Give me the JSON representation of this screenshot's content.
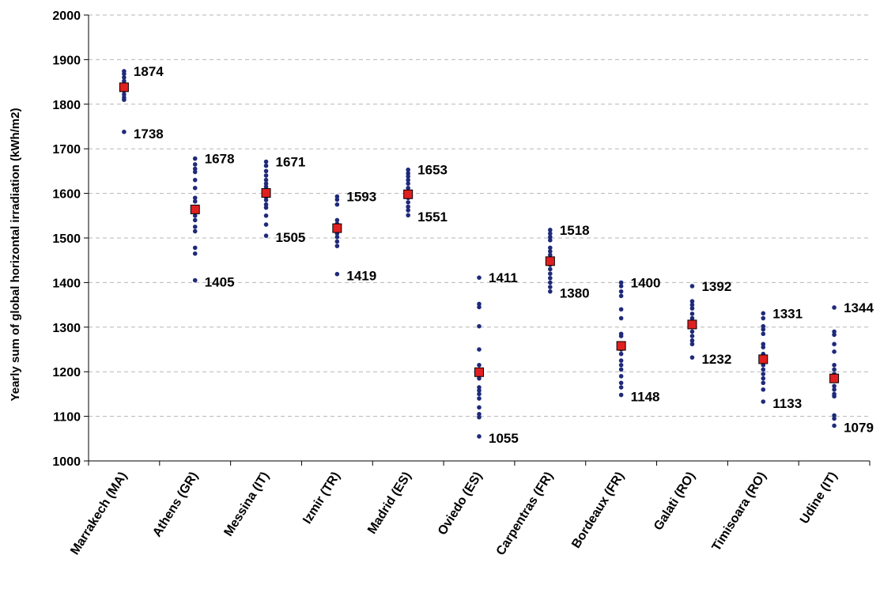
{
  "chart_data": {
    "type": "scatter",
    "title": "",
    "ylabel": "Yearly sum of global horizontal irradiation (kWh/m2)",
    "xlabel": "",
    "ylim": [
      1000,
      2000
    ],
    "yticks": [
      1000,
      1100,
      1200,
      1300,
      1400,
      1500,
      1600,
      1700,
      1800,
      1900,
      2000
    ],
    "grid": "horizontal dashed",
    "categories": [
      "Marrakech (MA)",
      "Athens (GR)",
      "Messina (IT)",
      "Izmir (TR)",
      "Madrid (ES)",
      "Oviedo (ES)",
      "Carpentras (FR)",
      "Bordeaux (FR)",
      "Galati (RO)",
      "Timisoara (RO)",
      "Udine (IT)"
    ],
    "series": [
      {
        "role": "individual values",
        "marker": "dot",
        "color": "#1f2a7a",
        "points": [
          [
            1874,
            1868,
            1860,
            1852,
            1845,
            1838,
            1830,
            1822,
            1815,
            1810,
            1738
          ],
          [
            1678,
            1665,
            1655,
            1648,
            1630,
            1612,
            1590,
            1582,
            1570,
            1560,
            1550,
            1540,
            1525,
            1515,
            1478,
            1465,
            1405
          ],
          [
            1671,
            1662,
            1650,
            1640,
            1630,
            1622,
            1615,
            1608,
            1600,
            1592,
            1585,
            1575,
            1568,
            1550,
            1530,
            1505
          ],
          [
            1593,
            1586,
            1575,
            1540,
            1532,
            1525,
            1518,
            1510,
            1502,
            1492,
            1482,
            1419
          ],
          [
            1653,
            1645,
            1638,
            1630,
            1622,
            1612,
            1600,
            1590,
            1580,
            1570,
            1562,
            1551
          ],
          [
            1411,
            1352,
            1345,
            1302,
            1250,
            1215,
            1205,
            1195,
            1185,
            1165,
            1158,
            1150,
            1140,
            1120,
            1105,
            1098,
            1055
          ],
          [
            1518,
            1510,
            1502,
            1495,
            1478,
            1470,
            1462,
            1450,
            1440,
            1430,
            1420,
            1410,
            1400,
            1390,
            1380
          ],
          [
            1400,
            1392,
            1380,
            1370,
            1340,
            1320,
            1285,
            1280,
            1250,
            1240,
            1225,
            1215,
            1205,
            1190,
            1175,
            1165,
            1148
          ],
          [
            1392,
            1358,
            1350,
            1342,
            1330,
            1320,
            1312,
            1300,
            1290,
            1280,
            1270,
            1262,
            1232
          ],
          [
            1331,
            1320,
            1302,
            1295,
            1285,
            1262,
            1255,
            1240,
            1228,
            1215,
            1205,
            1195,
            1185,
            1175,
            1160,
            1133
          ],
          [
            1344,
            1290,
            1283,
            1262,
            1245,
            1215,
            1205,
            1195,
            1180,
            1168,
            1160,
            1150,
            1145,
            1102,
            1095,
            1079
          ]
        ]
      },
      {
        "role": "mean",
        "marker": "square",
        "color": "#e02020",
        "values": [
          1838,
          1564,
          1601,
          1522,
          1598,
          1199,
          1448,
          1258,
          1306,
          1228,
          1185
        ]
      }
    ],
    "annotations": [
      {
        "category": 0,
        "max": "1874",
        "min": "1738"
      },
      {
        "category": 1,
        "max": "1678",
        "min": "1405"
      },
      {
        "category": 2,
        "max": "1671",
        "min": "1505"
      },
      {
        "category": 3,
        "max": "1593",
        "min": "1419"
      },
      {
        "category": 4,
        "max": "1653",
        "min": "1551"
      },
      {
        "category": 5,
        "max": "1411",
        "min": "1055"
      },
      {
        "category": 6,
        "max": "1518",
        "min": "1380"
      },
      {
        "category": 7,
        "max": "1400",
        "min": "1148"
      },
      {
        "category": 8,
        "max": "1392",
        "min": "1232"
      },
      {
        "category": 9,
        "max": "1331",
        "min": "1133"
      },
      {
        "category": 10,
        "max": "1344",
        "min": "1079"
      }
    ]
  }
}
